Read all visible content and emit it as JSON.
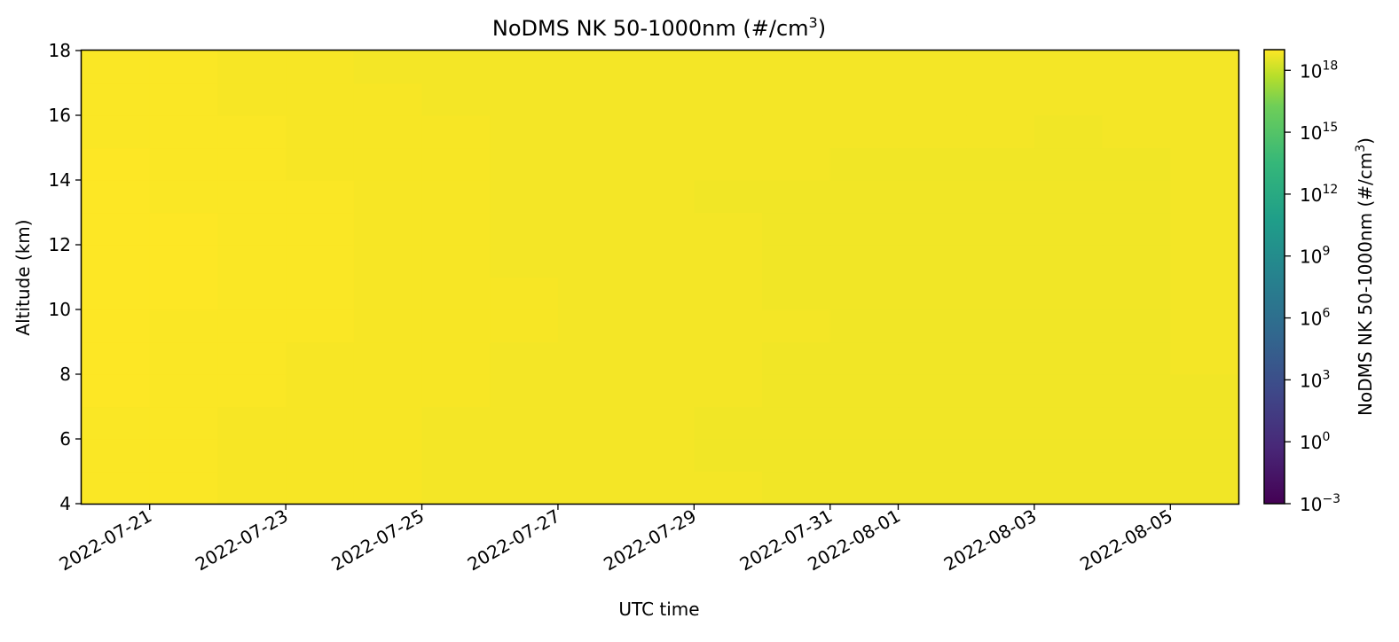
{
  "chart_data": {
    "type": "heatmap",
    "title": {
      "main": "NoDMS NK 50-1000nm (#/cm",
      "sup": "3",
      "tail": ")"
    },
    "xlabel": "UTC time",
    "ylabel": "Altitude (km)",
    "x_axis": {
      "type": "date",
      "range": [
        "2022-07-20",
        "2022-08-06"
      ],
      "ticks": [
        "2022-07-21",
        "2022-07-23",
        "2022-07-25",
        "2022-07-27",
        "2022-07-29",
        "2022-07-31",
        "2022-08-01",
        "2022-08-03",
        "2022-08-05"
      ]
    },
    "y_axis": {
      "range": [
        4,
        18
      ],
      "ticks": [
        4,
        6,
        8,
        10,
        12,
        14,
        16,
        18
      ]
    },
    "colorbar": {
      "label": {
        "main": "NoDMS NK 50-1000nm (#/cm",
        "sup": "3",
        "tail": ")"
      },
      "scale": "log",
      "colormap": "viridis",
      "range_exponents": [
        -3,
        19
      ],
      "tick_exponents": [
        -3,
        0,
        3,
        6,
        9,
        12,
        15,
        18
      ]
    },
    "data": {
      "time_start": [
        "2022-07-20",
        "2022-07-21",
        "2022-07-22",
        "2022-07-23",
        "2022-07-24",
        "2022-07-25",
        "2022-07-26",
        "2022-07-27",
        "2022-07-28",
        "2022-07-29",
        "2022-07-30",
        "2022-07-31",
        "2022-08-01",
        "2022-08-02",
        "2022-08-03",
        "2022-08-04",
        "2022-08-05"
      ],
      "altitude_bin_start_km": [
        4,
        5,
        6,
        7,
        8,
        9,
        10,
        11,
        12,
        13,
        14,
        15,
        16,
        17
      ],
      "log10_values_rows_by_altitude": [
        [
          18.9,
          18.9,
          18.8,
          18.8,
          18.8,
          18.7,
          18.7,
          18.7,
          18.7,
          18.7,
          18.6,
          18.6,
          18.6,
          18.6,
          18.6,
          18.6,
          18.6
        ],
        [
          18.9,
          18.9,
          18.8,
          18.8,
          18.8,
          18.7,
          18.7,
          18.7,
          18.7,
          18.6,
          18.6,
          18.6,
          18.6,
          18.6,
          18.6,
          18.6,
          18.6
        ],
        [
          18.9,
          18.9,
          18.8,
          18.8,
          18.8,
          18.7,
          18.7,
          18.7,
          18.7,
          18.6,
          18.6,
          18.6,
          18.6,
          18.6,
          18.6,
          18.6,
          18.6
        ],
        [
          19.0,
          18.9,
          18.9,
          18.8,
          18.8,
          18.8,
          18.7,
          18.7,
          18.7,
          18.7,
          18.6,
          18.6,
          18.6,
          18.6,
          18.6,
          18.6,
          18.6
        ],
        [
          19.0,
          18.9,
          18.9,
          18.8,
          18.8,
          18.8,
          18.7,
          18.7,
          18.7,
          18.7,
          18.6,
          18.6,
          18.6,
          18.6,
          18.6,
          18.6,
          18.7
        ],
        [
          19.0,
          18.9,
          18.9,
          18.9,
          18.8,
          18.8,
          18.8,
          18.7,
          18.7,
          18.7,
          18.7,
          18.6,
          18.6,
          18.6,
          18.6,
          18.6,
          18.7
        ],
        [
          19.0,
          19.0,
          18.9,
          18.9,
          18.8,
          18.8,
          18.8,
          18.7,
          18.7,
          18.7,
          18.6,
          18.6,
          18.6,
          18.6,
          18.6,
          18.6,
          18.7
        ],
        [
          19.0,
          19.0,
          18.9,
          18.9,
          18.8,
          18.8,
          18.7,
          18.7,
          18.7,
          18.7,
          18.6,
          18.6,
          18.6,
          18.6,
          18.6,
          18.6,
          18.7
        ],
        [
          19.0,
          19.0,
          18.9,
          18.9,
          18.8,
          18.8,
          18.7,
          18.7,
          18.7,
          18.7,
          18.6,
          18.6,
          18.6,
          18.6,
          18.6,
          18.6,
          18.7
        ],
        [
          19.0,
          18.9,
          18.9,
          18.9,
          18.8,
          18.8,
          18.7,
          18.7,
          18.7,
          18.6,
          18.6,
          18.6,
          18.6,
          18.6,
          18.6,
          18.6,
          18.7
        ],
        [
          19.0,
          18.9,
          18.9,
          18.8,
          18.8,
          18.8,
          18.7,
          18.7,
          18.7,
          18.7,
          18.7,
          18.6,
          18.6,
          18.6,
          18.6,
          18.6,
          18.7
        ],
        [
          18.9,
          18.9,
          18.9,
          18.8,
          18.8,
          18.8,
          18.7,
          18.7,
          18.7,
          18.7,
          18.7,
          18.7,
          18.7,
          18.7,
          18.6,
          18.7,
          18.7
        ],
        [
          18.9,
          18.9,
          18.8,
          18.8,
          18.8,
          18.7,
          18.7,
          18.7,
          18.7,
          18.7,
          18.7,
          18.7,
          18.7,
          18.7,
          18.7,
          18.7,
          18.7
        ],
        [
          18.9,
          18.9,
          18.8,
          18.8,
          18.7,
          18.7,
          18.7,
          18.7,
          18.7,
          18.7,
          18.7,
          18.7,
          18.7,
          18.7,
          18.7,
          18.7,
          18.7
        ]
      ]
    }
  }
}
